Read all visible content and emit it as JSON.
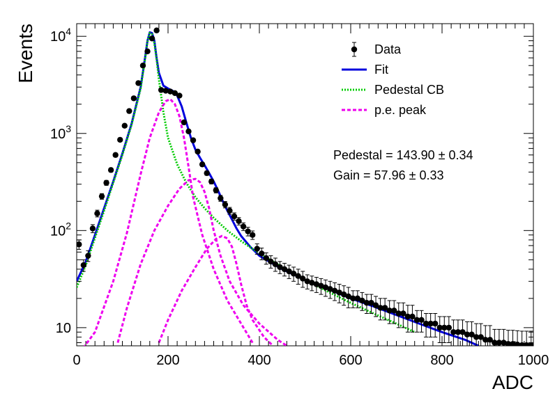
{
  "chart_data": {
    "type": "scatter",
    "title": "",
    "xlabel": "ADC",
    "ylabel": "Events",
    "xlim": [
      0,
      1000
    ],
    "ylim": [
      6.5,
      13500
    ],
    "yscale": "log",
    "grid": false,
    "legend_position": "top-right",
    "x_ticks": [
      0,
      200,
      400,
      600,
      800,
      1000
    ],
    "x_tick_labels": [
      "0",
      "200",
      "400",
      "600",
      "800",
      "1000"
    ],
    "y_ticks": [
      10,
      100,
      1000,
      10000
    ],
    "y_tick_labels": [
      {
        "base": "10",
        "exp": ""
      },
      {
        "base": "10",
        "exp": "2"
      },
      {
        "base": "10",
        "exp": "3"
      },
      {
        "base": "10",
        "exp": "4"
      }
    ],
    "legend": [
      {
        "label": "Data",
        "style": "marker",
        "color": "#000000"
      },
      {
        "label": "Fit",
        "style": "solid",
        "color": "#0000dd"
      },
      {
        "label": "Pedestal CB",
        "style": "dotted",
        "color": "#00cc00"
      },
      {
        "label": "p.e. peak",
        "style": "dashed",
        "color": "#ee00ee"
      }
    ],
    "annotations": [
      {
        "label": "Pedestal",
        "value": "143.90",
        "error": "0.34"
      },
      {
        "label": "Gain",
        "value": "57.96",
        "error": "0.33"
      }
    ],
    "series": [
      {
        "name": "Data",
        "style": "points",
        "color": "#000000",
        "points": [
          [
            5,
            72,
            8
          ],
          [
            15,
            44,
            6
          ],
          [
            25,
            55,
            7
          ],
          [
            35,
            105,
            10
          ],
          [
            45,
            150,
            12
          ],
          [
            55,
            225,
            15
          ],
          [
            65,
            310,
            18
          ],
          [
            75,
            420,
            20
          ],
          [
            85,
            600,
            25
          ],
          [
            95,
            860,
            30
          ],
          [
            105,
            1200,
            35
          ],
          [
            115,
            1700,
            40
          ],
          [
            125,
            2300,
            48
          ],
          [
            135,
            3300,
            58
          ],
          [
            145,
            5000,
            70
          ],
          [
            155,
            7000,
            85
          ],
          [
            165,
            9500,
            98
          ],
          [
            175,
            11500,
            107
          ],
          [
            185,
            2800,
            53
          ],
          [
            195,
            2750,
            52
          ],
          [
            205,
            2700,
            52
          ],
          [
            215,
            2600,
            51
          ],
          [
            225,
            2450,
            49
          ],
          [
            235,
            1300,
            36
          ],
          [
            245,
            1050,
            32
          ],
          [
            255,
            850,
            29
          ],
          [
            265,
            650,
            25
          ],
          [
            275,
            480,
            22
          ],
          [
            285,
            390,
            20
          ],
          [
            295,
            320,
            18
          ],
          [
            305,
            260,
            16
          ],
          [
            315,
            215,
            15
          ],
          [
            325,
            185,
            14
          ],
          [
            335,
            160,
            13
          ],
          [
            345,
            140,
            12
          ],
          [
            355,
            125,
            11
          ],
          [
            365,
            110,
            10
          ],
          [
            375,
            98,
            10
          ],
          [
            385,
            90,
            9
          ],
          [
            395,
            65,
            8
          ],
          [
            405,
            58,
            8
          ],
          [
            415,
            52,
            7
          ],
          [
            425,
            48,
            7
          ],
          [
            435,
            45,
            7
          ],
          [
            445,
            42,
            6
          ],
          [
            455,
            40,
            6
          ],
          [
            465,
            38,
            6
          ],
          [
            475,
            36,
            6
          ],
          [
            485,
            34,
            6
          ],
          [
            495,
            32,
            6
          ],
          [
            505,
            30,
            5
          ],
          [
            515,
            29,
            5
          ],
          [
            525,
            28,
            5
          ],
          [
            535,
            27,
            5
          ],
          [
            545,
            26,
            5
          ],
          [
            555,
            25,
            5
          ],
          [
            565,
            24,
            5
          ],
          [
            575,
            23,
            5
          ],
          [
            585,
            22,
            5
          ],
          [
            595,
            21,
            5
          ],
          [
            605,
            20,
            4
          ],
          [
            615,
            20,
            4
          ],
          [
            625,
            19,
            4
          ],
          [
            635,
            18,
            4
          ],
          [
            645,
            18,
            4
          ],
          [
            655,
            17,
            4
          ],
          [
            665,
            16,
            4
          ],
          [
            675,
            16,
            4
          ],
          [
            685,
            15,
            4
          ],
          [
            695,
            15,
            4
          ],
          [
            705,
            14,
            4
          ],
          [
            715,
            14,
            4
          ],
          [
            725,
            13,
            4
          ],
          [
            735,
            13,
            4
          ],
          [
            745,
            12,
            3
          ],
          [
            755,
            12,
            3
          ],
          [
            765,
            11,
            3
          ],
          [
            775,
            11,
            3
          ],
          [
            785,
            11,
            3
          ],
          [
            795,
            10,
            3
          ],
          [
            805,
            10,
            3
          ],
          [
            815,
            10,
            3
          ],
          [
            825,
            9,
            3
          ],
          [
            835,
            9,
            3
          ],
          [
            845,
            9,
            3
          ],
          [
            855,
            8.5,
            3
          ],
          [
            865,
            8.5,
            3
          ],
          [
            875,
            8,
            3
          ],
          [
            885,
            8,
            3
          ],
          [
            895,
            7.5,
            3
          ],
          [
            905,
            7.5,
            3
          ],
          [
            915,
            7,
            2.6
          ],
          [
            925,
            7,
            2.6
          ],
          [
            935,
            7,
            2.6
          ],
          [
            945,
            6.8,
            2.6
          ],
          [
            955,
            6.8,
            2.6
          ],
          [
            965,
            6.7,
            2.6
          ],
          [
            975,
            6.6,
            2.6
          ],
          [
            985,
            6.6,
            2.6
          ],
          [
            995,
            6.6,
            2.6
          ]
        ]
      },
      {
        "name": "Fit",
        "style": "solid",
        "color": "#0000dd",
        "points": [
          [
            0,
            30
          ],
          [
            20,
            48
          ],
          [
            40,
            90
          ],
          [
            60,
            170
          ],
          [
            80,
            320
          ],
          [
            100,
            620
          ],
          [
            120,
            1250
          ],
          [
            140,
            3000
          ],
          [
            150,
            6200
          ],
          [
            155,
            9000
          ],
          [
            160,
            11000
          ],
          [
            165,
            10800
          ],
          [
            170,
            9000
          ],
          [
            175,
            6000
          ],
          [
            180,
            4200
          ],
          [
            190,
            3100
          ],
          [
            200,
            2900
          ],
          [
            210,
            2750
          ],
          [
            220,
            2450
          ],
          [
            230,
            1900
          ],
          [
            240,
            1300
          ],
          [
            250,
            900
          ],
          [
            260,
            680
          ],
          [
            270,
            560
          ],
          [
            280,
            470
          ],
          [
            290,
            390
          ],
          [
            300,
            320
          ],
          [
            310,
            255
          ],
          [
            320,
            200
          ],
          [
            330,
            160
          ],
          [
            340,
            130
          ],
          [
            350,
            105
          ],
          [
            360,
            88
          ],
          [
            380,
            68
          ],
          [
            400,
            55
          ],
          [
            450,
            40
          ],
          [
            500,
            31
          ],
          [
            550,
            25
          ],
          [
            600,
            20
          ],
          [
            650,
            16.5
          ],
          [
            700,
            13.5
          ],
          [
            750,
            11
          ],
          [
            800,
            9
          ],
          [
            850,
            7.5
          ],
          [
            880,
            6.5
          ]
        ]
      },
      {
        "name": "Pedestal CB",
        "style": "dotted",
        "color": "#00cc00",
        "points": [
          [
            0,
            26
          ],
          [
            20,
            44
          ],
          [
            40,
            84
          ],
          [
            60,
            160
          ],
          [
            80,
            310
          ],
          [
            100,
            600
          ],
          [
            120,
            1220
          ],
          [
            140,
            2900
          ],
          [
            150,
            6000
          ],
          [
            155,
            8800
          ],
          [
            160,
            10800
          ],
          [
            165,
            10500
          ],
          [
            170,
            8500
          ],
          [
            175,
            5800
          ],
          [
            180,
            3600
          ],
          [
            190,
            1650
          ],
          [
            200,
            900
          ],
          [
            220,
            480
          ],
          [
            240,
            310
          ],
          [
            260,
            220
          ],
          [
            280,
            170
          ],
          [
            300,
            135
          ],
          [
            330,
            100
          ],
          [
            360,
            78
          ],
          [
            400,
            58
          ],
          [
            450,
            42
          ],
          [
            500,
            31
          ],
          [
            550,
            23.5
          ],
          [
            600,
            18
          ],
          [
            650,
            14
          ],
          [
            700,
            11
          ],
          [
            740,
            9
          ]
        ]
      },
      {
        "name": "p.e. peak 1",
        "style": "dashed",
        "color": "#ee00ee",
        "points": [
          [
            0,
            5
          ],
          [
            40,
            9
          ],
          [
            80,
            30
          ],
          [
            110,
            95
          ],
          [
            140,
            380
          ],
          [
            160,
            900
          ],
          [
            180,
            1650
          ],
          [
            195,
            2150
          ],
          [
            205,
            2250
          ],
          [
            215,
            2000
          ],
          [
            225,
            1500
          ],
          [
            235,
            900
          ],
          [
            245,
            450
          ],
          [
            255,
            220
          ],
          [
            275,
            90
          ],
          [
            300,
            40
          ],
          [
            330,
            19
          ],
          [
            360,
            11
          ],
          [
            385,
            7
          ]
        ]
      },
      {
        "name": "p.e. peak 2",
        "style": "dashed",
        "color": "#ee00ee",
        "points": [
          [
            90,
            7
          ],
          [
            110,
            16
          ],
          [
            140,
            45
          ],
          [
            170,
            100
          ],
          [
            200,
            180
          ],
          [
            225,
            270
          ],
          [
            245,
            330
          ],
          [
            260,
            340
          ],
          [
            270,
            315
          ],
          [
            280,
            250
          ],
          [
            290,
            170
          ],
          [
            300,
            100
          ],
          [
            315,
            55
          ],
          [
            335,
            30
          ],
          [
            365,
            17
          ],
          [
            400,
            11
          ],
          [
            440,
            7.5
          ],
          [
            460,
            6.5
          ]
        ]
      },
      {
        "name": "p.e. peak 3",
        "style": "dashed",
        "color": "#ee00ee",
        "points": [
          [
            180,
            7
          ],
          [
            200,
            12
          ],
          [
            230,
            24
          ],
          [
            260,
            42
          ],
          [
            285,
            65
          ],
          [
            305,
            82
          ],
          [
            318,
            88
          ],
          [
            330,
            83
          ],
          [
            340,
            68
          ],
          [
            350,
            45
          ],
          [
            360,
            28
          ],
          [
            372,
            17
          ],
          [
            385,
            12
          ],
          [
            410,
            8
          ],
          [
            430,
            6.5
          ]
        ]
      }
    ]
  }
}
